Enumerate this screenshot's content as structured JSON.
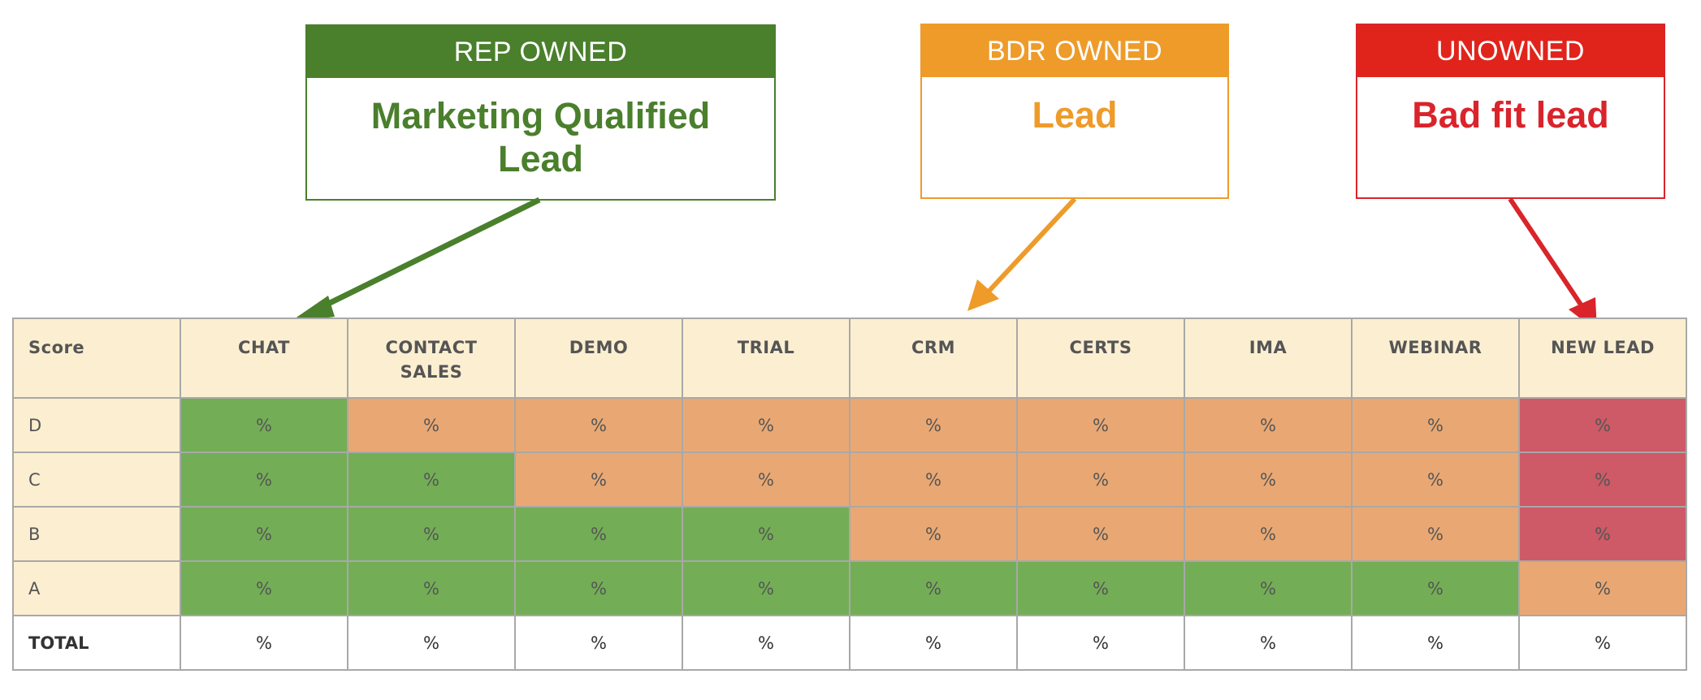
{
  "callouts": {
    "rep": {
      "header": "REP OWNED",
      "title_line1": "Marketing Qualified",
      "title_line2": "Lead",
      "color": "#4a7f2c"
    },
    "bdr": {
      "header": "BDR OWNED",
      "title": "Lead",
      "color": "#ee9b2a"
    },
    "unowned": {
      "header": "UNOWNED",
      "title": "Bad fit lead",
      "color": "#e0241c"
    }
  },
  "table": {
    "corner": "Score",
    "columns": [
      {
        "line1": "CHAT",
        "line2": ""
      },
      {
        "line1": "CONTACT",
        "line2": "SALES"
      },
      {
        "line1": "DEMO",
        "line2": ""
      },
      {
        "line1": "TRIAL",
        "line2": ""
      },
      {
        "line1": "CRM",
        "line2": ""
      },
      {
        "line1": "CERTS",
        "line2": ""
      },
      {
        "line1": "IMA",
        "line2": ""
      },
      {
        "line1": "WEBINAR",
        "line2": ""
      },
      {
        "line1": "NEW LEAD",
        "line2": ""
      }
    ],
    "rows": [
      {
        "label": "D",
        "cells": [
          "%",
          "%",
          "%",
          "%",
          "%",
          "%",
          "%",
          "%",
          "%"
        ],
        "status": [
          "g",
          "o",
          "o",
          "o",
          "o",
          "o",
          "o",
          "o",
          "r"
        ]
      },
      {
        "label": "C",
        "cells": [
          "%",
          "%",
          "%",
          "%",
          "%",
          "%",
          "%",
          "%",
          "%"
        ],
        "status": [
          "g",
          "g",
          "o",
          "o",
          "o",
          "o",
          "o",
          "o",
          "r"
        ]
      },
      {
        "label": "B",
        "cells": [
          "%",
          "%",
          "%",
          "%",
          "%",
          "%",
          "%",
          "%",
          "%"
        ],
        "status": [
          "g",
          "g",
          "g",
          "g",
          "o",
          "o",
          "o",
          "o",
          "r"
        ]
      },
      {
        "label": "A",
        "cells": [
          "%",
          "%",
          "%",
          "%",
          "%",
          "%",
          "%",
          "%",
          "%"
        ],
        "status": [
          "g",
          "g",
          "g",
          "g",
          "g",
          "g",
          "g",
          "g",
          "o"
        ]
      }
    ],
    "total": {
      "label": "TOTAL",
      "cells": [
        "%",
        "%",
        "%",
        "%",
        "%",
        "%",
        "%",
        "%",
        "%"
      ]
    },
    "legend_colors": {
      "g": "#73ae56",
      "o": "#e9a873",
      "r": "#cd5a66"
    }
  }
}
